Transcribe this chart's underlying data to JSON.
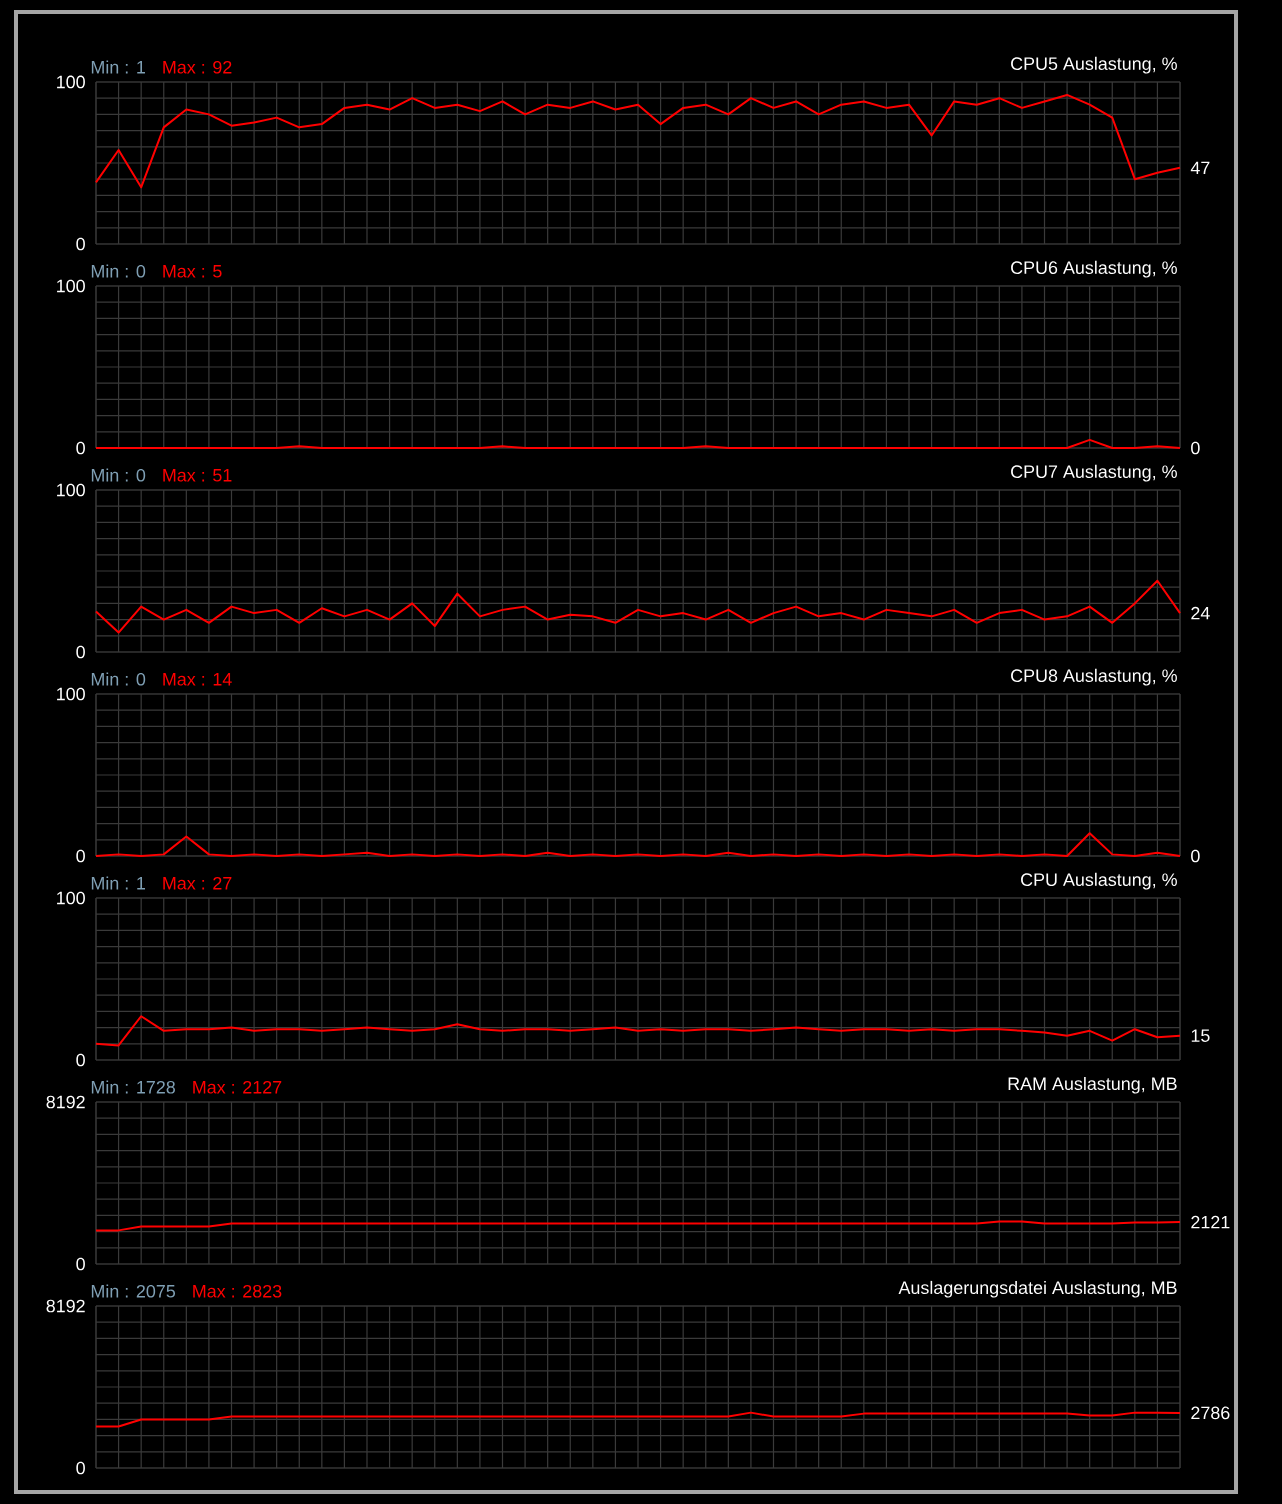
{
  "chart_data": [
    {
      "type": "line",
      "title": "CPU5 Auslastung, %",
      "annotations": [
        "Min : 1",
        "Max : 92"
      ],
      "categories": [
        null,
        null,
        null,
        null,
        null,
        null,
        null,
        null,
        null,
        null,
        null,
        null,
        null,
        null,
        null,
        null,
        null,
        null,
        null,
        null,
        null,
        null,
        null,
        null,
        null,
        null,
        null,
        null,
        null,
        null,
        null,
        null,
        null,
        null,
        null,
        null,
        null,
        null,
        null,
        null,
        null,
        null,
        null,
        null,
        null,
        null,
        null,
        null,
        null
      ],
      "series": [
        {
          "color": "#ff0000",
          "values": [
            38,
            58,
            35,
            72,
            83,
            80,
            73,
            75,
            78,
            72,
            74,
            84,
            86,
            83,
            90,
            84,
            86,
            82,
            88,
            80,
            86,
            84,
            88,
            83,
            86,
            74,
            84,
            86,
            80,
            90,
            84,
            88,
            80,
            86,
            88,
            84,
            86,
            67,
            88,
            86,
            90,
            84,
            88,
            92,
            86,
            78,
            40,
            44,
            47
          ],
          "value_labels": [
            null,
            null,
            null,
            null,
            null,
            null,
            null,
            null,
            null,
            null,
            null,
            null,
            null,
            null,
            null,
            null,
            null,
            null,
            null,
            null,
            null,
            null,
            null,
            null,
            null,
            null,
            null,
            null,
            null,
            null,
            null,
            null,
            null,
            null,
            null,
            null,
            null,
            null,
            null,
            null,
            null,
            null,
            null,
            null,
            null,
            null,
            null,
            null,
            "47"
          ]
        }
      ],
      "ylim": [
        0,
        100
      ],
      "yticks": [
        0,
        100
      ],
      "grid": true
    },
    {
      "type": "line",
      "title": "CPU6 Auslastung, %",
      "annotations": [
        "Min : 0",
        "Max : 5"
      ],
      "categories": [
        null,
        null,
        null,
        null,
        null,
        null,
        null,
        null,
        null,
        null,
        null,
        null,
        null,
        null,
        null,
        null,
        null,
        null,
        null,
        null,
        null,
        null,
        null,
        null,
        null,
        null,
        null,
        null,
        null,
        null,
        null,
        null,
        null,
        null,
        null,
        null,
        null,
        null,
        null,
        null,
        null,
        null,
        null,
        null,
        null,
        null,
        null,
        null,
        null
      ],
      "series": [
        {
          "color": "#ff0000",
          "values": [
            0,
            0,
            0,
            0,
            0,
            0,
            0,
            0,
            0,
            1,
            0,
            0,
            0,
            0,
            0,
            0,
            0,
            0,
            1,
            0,
            0,
            0,
            0,
            0,
            0,
            0,
            0,
            1,
            0,
            0,
            0,
            0,
            0,
            0,
            0,
            0,
            0,
            0,
            0,
            0,
            0,
            0,
            0,
            0,
            5,
            0,
            0,
            1,
            0
          ],
          "value_labels": [
            null,
            null,
            null,
            null,
            null,
            null,
            null,
            null,
            null,
            null,
            null,
            null,
            null,
            null,
            null,
            null,
            null,
            null,
            null,
            null,
            null,
            null,
            null,
            null,
            null,
            null,
            null,
            null,
            null,
            null,
            null,
            null,
            null,
            null,
            null,
            null,
            null,
            null,
            null,
            null,
            null,
            null,
            null,
            null,
            null,
            null,
            null,
            null,
            "0"
          ]
        }
      ],
      "ylim": [
        0,
        100
      ],
      "yticks": [
        0,
        100
      ],
      "grid": true
    },
    {
      "type": "line",
      "title": "CPU7 Auslastung, %",
      "annotations": [
        "Min : 0",
        "Max : 51"
      ],
      "categories": [
        null,
        null,
        null,
        null,
        null,
        null,
        null,
        null,
        null,
        null,
        null,
        null,
        null,
        null,
        null,
        null,
        null,
        null,
        null,
        null,
        null,
        null,
        null,
        null,
        null,
        null,
        null,
        null,
        null,
        null,
        null,
        null,
        null,
        null,
        null,
        null,
        null,
        null,
        null,
        null,
        null,
        null,
        null,
        null,
        null,
        null,
        null,
        null,
        null
      ],
      "series": [
        {
          "color": "#ff0000",
          "values": [
            25,
            12,
            28,
            20,
            26,
            18,
            28,
            24,
            26,
            18,
            27,
            22,
            26,
            20,
            30,
            16,
            36,
            22,
            26,
            28,
            20,
            23,
            22,
            18,
            26,
            22,
            24,
            20,
            26,
            18,
            24,
            28,
            22,
            24,
            20,
            26,
            24,
            22,
            26,
            18,
            24,
            26,
            20,
            22,
            28,
            18,
            30,
            44,
            24
          ],
          "value_labels": [
            null,
            null,
            null,
            null,
            null,
            null,
            null,
            null,
            null,
            null,
            null,
            null,
            null,
            null,
            null,
            null,
            null,
            null,
            null,
            null,
            null,
            null,
            null,
            null,
            null,
            null,
            null,
            null,
            null,
            null,
            null,
            null,
            null,
            null,
            null,
            null,
            null,
            null,
            null,
            null,
            null,
            null,
            null,
            null,
            null,
            null,
            null,
            null,
            "24"
          ]
        }
      ],
      "ylim": [
        0,
        100
      ],
      "yticks": [
        0,
        100
      ],
      "grid": true
    },
    {
      "type": "line",
      "title": "CPU8 Auslastung, %",
      "annotations": [
        "Min : 0",
        "Max : 14"
      ],
      "categories": [
        null,
        null,
        null,
        null,
        null,
        null,
        null,
        null,
        null,
        null,
        null,
        null,
        null,
        null,
        null,
        null,
        null,
        null,
        null,
        null,
        null,
        null,
        null,
        null,
        null,
        null,
        null,
        null,
        null,
        null,
        null,
        null,
        null,
        null,
        null,
        null,
        null,
        null,
        null,
        null,
        null,
        null,
        null,
        null,
        null,
        null,
        null,
        null,
        null
      ],
      "series": [
        {
          "color": "#ff0000",
          "values": [
            0,
            1,
            0,
            1,
            12,
            1,
            0,
            1,
            0,
            1,
            0,
            1,
            2,
            0,
            1,
            0,
            1,
            0,
            1,
            0,
            2,
            0,
            1,
            0,
            1,
            0,
            1,
            0,
            2,
            0,
            1,
            0,
            1,
            0,
            1,
            0,
            1,
            0,
            1,
            0,
            1,
            0,
            1,
            0,
            14,
            1,
            0,
            2,
            0
          ],
          "value_labels": [
            null,
            null,
            null,
            null,
            null,
            null,
            null,
            null,
            null,
            null,
            null,
            null,
            null,
            null,
            null,
            null,
            null,
            null,
            null,
            null,
            null,
            null,
            null,
            null,
            null,
            null,
            null,
            null,
            null,
            null,
            null,
            null,
            null,
            null,
            null,
            null,
            null,
            null,
            null,
            null,
            null,
            null,
            null,
            null,
            null,
            null,
            null,
            null,
            "0"
          ]
        }
      ],
      "ylim": [
        0,
        100
      ],
      "yticks": [
        0,
        100
      ],
      "grid": true
    },
    {
      "type": "line",
      "title": "CPU Auslastung, %",
      "annotations": [
        "Min : 1",
        "Max : 27"
      ],
      "categories": [
        null,
        null,
        null,
        null,
        null,
        null,
        null,
        null,
        null,
        null,
        null,
        null,
        null,
        null,
        null,
        null,
        null,
        null,
        null,
        null,
        null,
        null,
        null,
        null,
        null,
        null,
        null,
        null,
        null,
        null,
        null,
        null,
        null,
        null,
        null,
        null,
        null,
        null,
        null,
        null,
        null,
        null,
        null,
        null,
        null,
        null,
        null,
        null,
        null
      ],
      "series": [
        {
          "color": "#ff0000",
          "values": [
            10,
            9,
            27,
            18,
            19,
            19,
            20,
            18,
            19,
            19,
            18,
            19,
            20,
            19,
            18,
            19,
            22,
            19,
            18,
            19,
            19,
            18,
            19,
            20,
            18,
            19,
            18,
            19,
            19,
            18,
            19,
            20,
            19,
            18,
            19,
            19,
            18,
            19,
            18,
            19,
            19,
            18,
            17,
            15,
            18,
            12,
            19,
            14,
            15
          ],
          "value_labels": [
            null,
            null,
            null,
            null,
            null,
            null,
            null,
            null,
            null,
            null,
            null,
            null,
            null,
            null,
            null,
            null,
            null,
            null,
            null,
            null,
            null,
            null,
            null,
            null,
            null,
            null,
            null,
            null,
            null,
            null,
            null,
            null,
            null,
            null,
            null,
            null,
            null,
            null,
            null,
            null,
            null,
            null,
            null,
            null,
            null,
            null,
            null,
            null,
            "15"
          ]
        }
      ],
      "ylim": [
        0,
        100
      ],
      "yticks": [
        0,
        100
      ],
      "grid": true
    },
    {
      "type": "line",
      "title": "RAM Auslastung, MB",
      "annotations": [
        "Min : 1728",
        "Max : 2127"
      ],
      "categories": [
        null,
        null,
        null,
        null,
        null,
        null,
        null,
        null,
        null,
        null,
        null,
        null,
        null,
        null,
        null,
        null,
        null,
        null,
        null,
        null,
        null,
        null,
        null,
        null,
        null,
        null,
        null,
        null,
        null,
        null,
        null,
        null,
        null,
        null,
        null,
        null,
        null,
        null,
        null,
        null,
        null,
        null,
        null,
        null,
        null,
        null,
        null,
        null,
        null
      ],
      "series": [
        {
          "color": "#ff0000",
          "values": [
            1700,
            1700,
            1900,
            1900,
            1900,
            1900,
            2050,
            2050,
            2050,
            2050,
            2050,
            2050,
            2050,
            2050,
            2050,
            2050,
            2050,
            2050,
            2050,
            2050,
            2050,
            2050,
            2050,
            2050,
            2050,
            2050,
            2050,
            2050,
            2050,
            2050,
            2050,
            2050,
            2050,
            2050,
            2050,
            2050,
            2050,
            2050,
            2050,
            2050,
            2150,
            2150,
            2050,
            2050,
            2050,
            2050,
            2100,
            2100,
            2121
          ],
          "value_labels": [
            null,
            null,
            null,
            null,
            null,
            null,
            null,
            null,
            null,
            null,
            null,
            null,
            null,
            null,
            null,
            null,
            null,
            null,
            null,
            null,
            null,
            null,
            null,
            null,
            null,
            null,
            null,
            null,
            null,
            null,
            null,
            null,
            null,
            null,
            null,
            null,
            null,
            null,
            null,
            null,
            null,
            null,
            null,
            null,
            null,
            null,
            null,
            null,
            "2121"
          ]
        }
      ],
      "ylim": [
        0,
        8192
      ],
      "yticks": [
        0,
        8192
      ],
      "grid": true
    },
    {
      "type": "line",
      "title": "Auslagerungsdatei Auslastung, MB",
      "annotations": [
        "Min : 2075",
        "Max : 2823"
      ],
      "categories": [
        null,
        null,
        null,
        null,
        null,
        null,
        null,
        null,
        null,
        null,
        null,
        null,
        null,
        null,
        null,
        null,
        null,
        null,
        null,
        null,
        null,
        null,
        null,
        null,
        null,
        null,
        null,
        null,
        null,
        null,
        null,
        null,
        null,
        null,
        null,
        null,
        null,
        null,
        null,
        null,
        null,
        null,
        null,
        null,
        null,
        null,
        null,
        null,
        null
      ],
      "series": [
        {
          "color": "#ff0000",
          "values": [
            2100,
            2100,
            2450,
            2450,
            2450,
            2450,
            2600,
            2600,
            2600,
            2600,
            2600,
            2600,
            2600,
            2600,
            2600,
            2600,
            2600,
            2600,
            2600,
            2600,
            2600,
            2600,
            2600,
            2600,
            2600,
            2600,
            2600,
            2600,
            2600,
            2800,
            2600,
            2600,
            2600,
            2600,
            2750,
            2750,
            2750,
            2750,
            2750,
            2750,
            2750,
            2750,
            2750,
            2750,
            2650,
            2650,
            2800,
            2800,
            2786
          ],
          "value_labels": [
            null,
            null,
            null,
            null,
            null,
            null,
            null,
            null,
            null,
            null,
            null,
            null,
            null,
            null,
            null,
            null,
            null,
            null,
            null,
            null,
            null,
            null,
            null,
            null,
            null,
            null,
            null,
            null,
            null,
            null,
            null,
            null,
            null,
            null,
            null,
            null,
            null,
            null,
            null,
            null,
            null,
            null,
            null,
            null,
            null,
            null,
            null,
            null,
            "2786"
          ]
        }
      ],
      "ylim": [
        0,
        8192
      ],
      "yticks": [
        0,
        8192
      ],
      "grid": true
    }
  ]
}
